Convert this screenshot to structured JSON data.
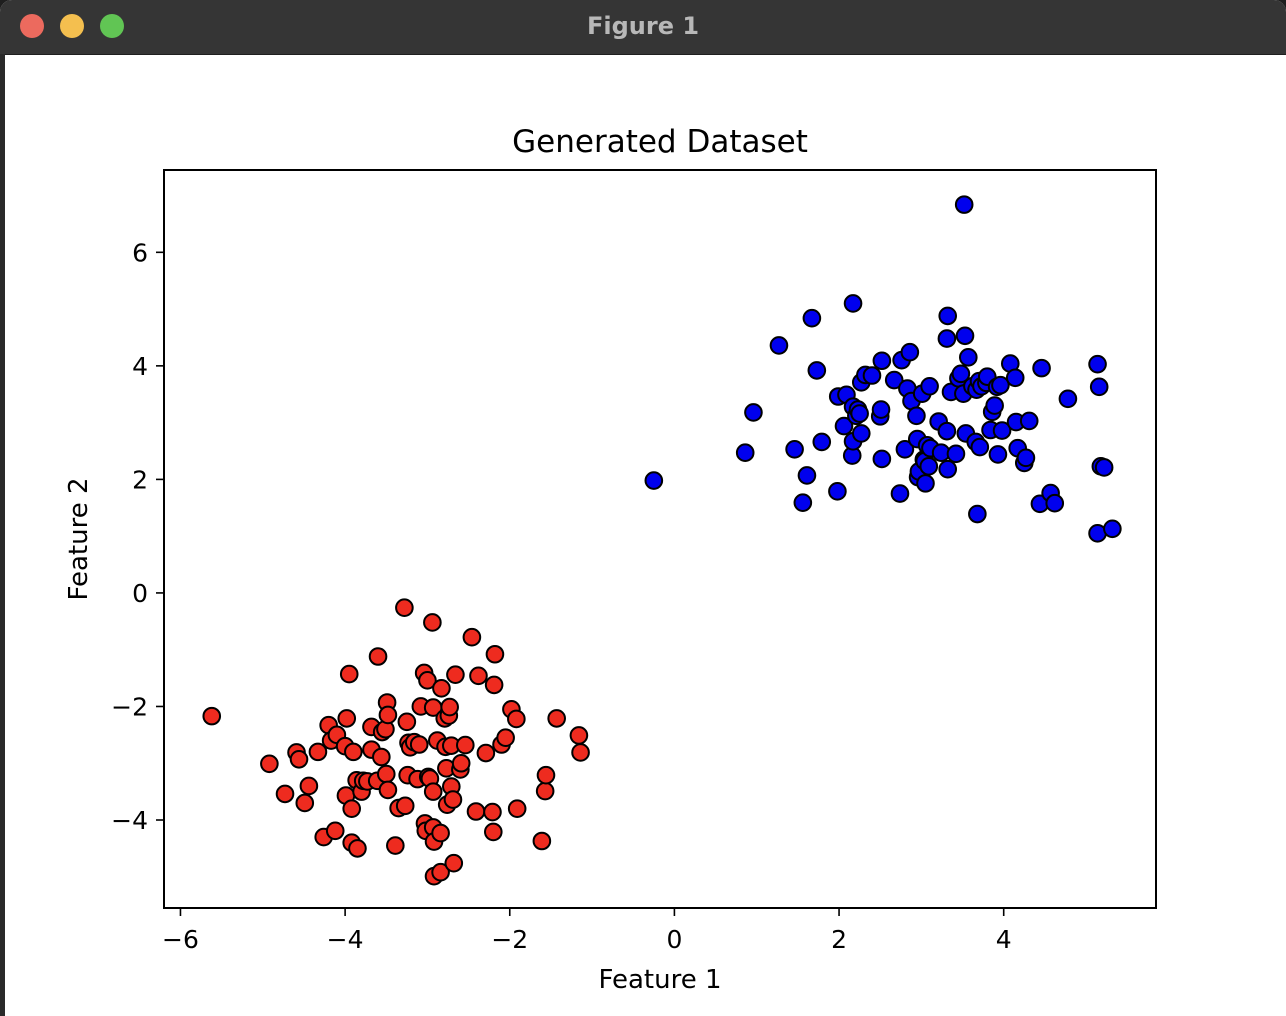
{
  "window": {
    "title": "Figure 1"
  },
  "colors": {
    "titlebar": "#353535",
    "close": "#ec6a5e",
    "minimize": "#f4bf4f",
    "zoom": "#61c554",
    "class_0": "#ee2b1f",
    "class_1": "#0000ee",
    "marker_edge": "#000000"
  },
  "chart_data": {
    "type": "scatter",
    "title": "Generated Dataset",
    "xlabel": "Feature 1",
    "ylabel": "Feature 2",
    "xlim": [
      -6.2,
      5.85
    ],
    "ylim": [
      -5.55,
      7.45
    ],
    "xticks": [
      -6,
      -4,
      -2,
      0,
      2,
      4
    ],
    "yticks": [
      -4,
      -2,
      0,
      2,
      4,
      6
    ],
    "xtick_labels": [
      "−6",
      "−4",
      "−2",
      "0",
      "2",
      "4"
    ],
    "ytick_labels": [
      "−4",
      "−2",
      "0",
      "2",
      "4",
      "6"
    ],
    "grid": false,
    "series": [
      {
        "color": "#ee2b1f",
        "points": [
          [
            -5.62,
            -2.17
          ],
          [
            -4.92,
            -3.01
          ],
          [
            -4.73,
            -3.54
          ],
          [
            -4.59,
            -2.81
          ],
          [
            -4.56,
            -2.93
          ],
          [
            -4.49,
            -3.7
          ],
          [
            -4.44,
            -3.4
          ],
          [
            -4.33,
            -2.8
          ],
          [
            -4.26,
            -4.3
          ],
          [
            -4.2,
            -2.33
          ],
          [
            -4.17,
            -2.6
          ],
          [
            -4.12,
            -4.19
          ],
          [
            -4.1,
            -2.5
          ],
          [
            -4.0,
            -2.7
          ],
          [
            -3.99,
            -3.57
          ],
          [
            -3.98,
            -2.21
          ],
          [
            -3.95,
            -1.43
          ],
          [
            -3.92,
            -3.8
          ],
          [
            -3.92,
            -4.4
          ],
          [
            -3.9,
            -2.8
          ],
          [
            -3.86,
            -3.3
          ],
          [
            -3.85,
            -4.5
          ],
          [
            -3.8,
            -3.5
          ],
          [
            -3.78,
            -3.31
          ],
          [
            -3.73,
            -3.32
          ],
          [
            -3.68,
            -2.36
          ],
          [
            -3.68,
            -2.76
          ],
          [
            -3.61,
            -3.31
          ],
          [
            -3.6,
            -1.12
          ],
          [
            -3.56,
            -2.89
          ],
          [
            -3.55,
            -2.45
          ],
          [
            -3.51,
            -2.4
          ],
          [
            -3.5,
            -3.19
          ],
          [
            -3.49,
            -1.93
          ],
          [
            -3.48,
            -2.15
          ],
          [
            -3.48,
            -3.47
          ],
          [
            -3.39,
            -4.45
          ],
          [
            -3.35,
            -3.79
          ],
          [
            -3.28,
            -0.26
          ],
          [
            -3.27,
            -3.75
          ],
          [
            -3.25,
            -2.27
          ],
          [
            -3.24,
            -3.21
          ],
          [
            -3.23,
            -2.64
          ],
          [
            -3.21,
            -2.72
          ],
          [
            -3.16,
            -2.63
          ],
          [
            -3.12,
            -3.28
          ],
          [
            -3.1,
            -2.67
          ],
          [
            -3.08,
            -2.0
          ],
          [
            -3.04,
            -1.41
          ],
          [
            -3.03,
            -4.06
          ],
          [
            -3.02,
            -4.19
          ],
          [
            -3.0,
            -1.54
          ],
          [
            -2.99,
            -3.24
          ],
          [
            -2.97,
            -3.27
          ],
          [
            -2.94,
            -0.52
          ],
          [
            -2.93,
            -2.02
          ],
          [
            -2.93,
            -3.5
          ],
          [
            -2.93,
            -4.13
          ],
          [
            -2.92,
            -4.38
          ],
          [
            -2.92,
            -4.99
          ],
          [
            -2.88,
            -2.6
          ],
          [
            -2.84,
            -4.23
          ],
          [
            -2.84,
            -4.92
          ],
          [
            -2.83,
            -1.68
          ],
          [
            -2.79,
            -2.21
          ],
          [
            -2.78,
            -2.71
          ],
          [
            -2.77,
            -3.09
          ],
          [
            -2.76,
            -3.73
          ],
          [
            -2.74,
            -2.16
          ],
          [
            -2.73,
            -2.01
          ],
          [
            -2.71,
            -2.69
          ],
          [
            -2.71,
            -3.41
          ],
          [
            -2.69,
            -3.64
          ],
          [
            -2.68,
            -4.76
          ],
          [
            -2.66,
            -1.44
          ],
          [
            -2.6,
            -3.11
          ],
          [
            -2.59,
            -3.0
          ],
          [
            -2.54,
            -2.68
          ],
          [
            -2.46,
            -0.78
          ],
          [
            -2.41,
            -3.85
          ],
          [
            -2.38,
            -1.46
          ],
          [
            -2.29,
            -2.82
          ],
          [
            -2.21,
            -3.86
          ],
          [
            -2.2,
            -4.21
          ],
          [
            -2.19,
            -1.62
          ],
          [
            -2.18,
            -1.08
          ],
          [
            -2.1,
            -2.67
          ],
          [
            -2.05,
            -2.55
          ],
          [
            -1.98,
            -2.05
          ],
          [
            -1.92,
            -2.22
          ],
          [
            -1.91,
            -3.8
          ],
          [
            -1.61,
            -4.37
          ],
          [
            -1.57,
            -3.49
          ],
          [
            -1.56,
            -3.21
          ],
          [
            -1.43,
            -2.21
          ],
          [
            -1.16,
            -2.51
          ],
          [
            -1.14,
            -2.81
          ]
        ]
      },
      {
        "color": "#0000ee",
        "points": [
          [
            -0.25,
            1.98
          ],
          [
            0.86,
            2.47
          ],
          [
            0.96,
            3.18
          ],
          [
            1.27,
            4.36
          ],
          [
            1.46,
            2.53
          ],
          [
            1.56,
            1.59
          ],
          [
            1.61,
            2.07
          ],
          [
            1.67,
            4.84
          ],
          [
            1.73,
            3.92
          ],
          [
            1.79,
            2.66
          ],
          [
            1.98,
            1.79
          ],
          [
            1.99,
            3.46
          ],
          [
            2.06,
            2.94
          ],
          [
            2.09,
            3.49
          ],
          [
            2.16,
            2.42
          ],
          [
            2.17,
            2.67
          ],
          [
            2.17,
            5.1
          ],
          [
            2.17,
            3.28
          ],
          [
            2.21,
            3.12
          ],
          [
            2.23,
            3.23
          ],
          [
            2.25,
            3.16
          ],
          [
            2.27,
            2.81
          ],
          [
            2.27,
            3.71
          ],
          [
            2.32,
            3.84
          ],
          [
            2.4,
            3.83
          ],
          [
            2.5,
            3.11
          ],
          [
            2.51,
            3.23
          ],
          [
            2.52,
            2.36
          ],
          [
            2.52,
            4.09
          ],
          [
            2.67,
            3.75
          ],
          [
            2.74,
            1.75
          ],
          [
            2.76,
            4.1
          ],
          [
            2.8,
            2.53
          ],
          [
            2.83,
            3.6
          ],
          [
            2.86,
            4.24
          ],
          [
            2.88,
            3.38
          ],
          [
            2.94,
            3.12
          ],
          [
            2.95,
            2.71
          ],
          [
            2.96,
            2.04
          ],
          [
            2.97,
            2.14
          ],
          [
            3.01,
            3.51
          ],
          [
            3.03,
            2.35
          ],
          [
            3.04,
            2.32
          ],
          [
            3.05,
            1.93
          ],
          [
            3.07,
            2.6
          ],
          [
            3.09,
            2.23
          ],
          [
            3.1,
            3.64
          ],
          [
            3.11,
            2.55
          ],
          [
            3.21,
            3.02
          ],
          [
            3.24,
            2.47
          ],
          [
            3.31,
            2.85
          ],
          [
            3.31,
            4.48
          ],
          [
            3.32,
            4.88
          ],
          [
            3.32,
            2.18
          ],
          [
            3.36,
            3.54
          ],
          [
            3.42,
            2.45
          ],
          [
            3.45,
            3.78
          ],
          [
            3.48,
            3.86
          ],
          [
            3.51,
            3.51
          ],
          [
            3.52,
            6.84
          ],
          [
            3.53,
            4.53
          ],
          [
            3.54,
            2.81
          ],
          [
            3.57,
            4.15
          ],
          [
            3.62,
            3.64
          ],
          [
            3.66,
            2.66
          ],
          [
            3.67,
            3.58
          ],
          [
            3.68,
            1.39
          ],
          [
            3.7,
            3.73
          ],
          [
            3.71,
            2.57
          ],
          [
            3.73,
            3.64
          ],
          [
            3.79,
            3.7
          ],
          [
            3.8,
            3.81
          ],
          [
            3.84,
            2.87
          ],
          [
            3.86,
            3.19
          ],
          [
            3.89,
            3.3
          ],
          [
            3.92,
            3.63
          ],
          [
            3.93,
            2.44
          ],
          [
            3.96,
            3.66
          ],
          [
            3.98,
            2.86
          ],
          [
            4.08,
            4.04
          ],
          [
            4.14,
            3.79
          ],
          [
            4.15,
            3.01
          ],
          [
            4.17,
            2.55
          ],
          [
            4.25,
            2.29
          ],
          [
            4.27,
            2.38
          ],
          [
            4.31,
            3.03
          ],
          [
            4.44,
            1.57
          ],
          [
            4.46,
            3.96
          ],
          [
            4.57,
            1.76
          ],
          [
            4.62,
            1.58
          ],
          [
            4.78,
            3.42
          ],
          [
            5.14,
            4.03
          ],
          [
            5.14,
            1.05
          ],
          [
            5.16,
            3.63
          ],
          [
            5.18,
            2.23
          ],
          [
            5.22,
            2.21
          ],
          [
            5.32,
            1.13
          ]
        ]
      }
    ]
  }
}
